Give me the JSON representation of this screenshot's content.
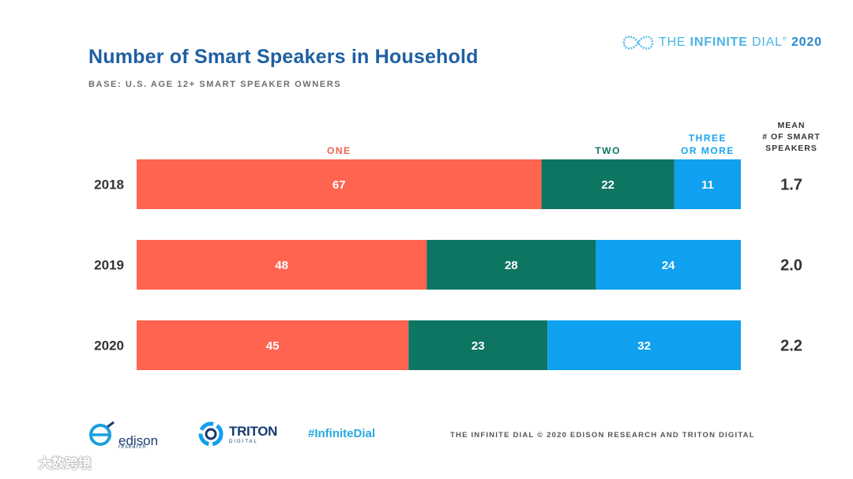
{
  "header": {
    "title": "Number of Smart Speakers in Household",
    "subtitle": "BASE: U.S. AGE 12+ SMART SPEAKER OWNERS"
  },
  "brand": {
    "prefix": "THE ",
    "bold": "INFINITE",
    "middle": " DIAL",
    "mark": "®",
    "year": "2020"
  },
  "colors": {
    "one": "#fe644f",
    "two": "#0f7563",
    "three": "#0fa0ef",
    "title": "#1f5fa3"
  },
  "chart_data": {
    "type": "bar",
    "orientation": "horizontal",
    "stacked": true,
    "title": "Number of Smart Speakers in Household",
    "subtitle": "BASE: U.S. AGE 12+ SMART SPEAKER OWNERS",
    "categories": [
      "2018",
      "2019",
      "2020"
    ],
    "xlim": [
      0,
      100
    ],
    "series": [
      {
        "name": "ONE",
        "values": [
          67,
          48,
          45
        ],
        "label_lines": [
          "ONE"
        ]
      },
      {
        "name": "TWO",
        "values": [
          22,
          28,
          23
        ],
        "label_lines": [
          "TWO"
        ]
      },
      {
        "name": "THREE OR MORE",
        "values": [
          11,
          24,
          32
        ],
        "label_lines": [
          "THREE",
          "OR MORE"
        ]
      }
    ],
    "mean": {
      "label_lines": [
        "MEAN",
        "# OF SMART",
        "SPEAKERS"
      ],
      "values": [
        "1.7",
        "2.0",
        "2.2"
      ]
    },
    "legend": "top, above segments"
  },
  "footer": {
    "edison": {
      "name": "edison",
      "sub": "research"
    },
    "triton": {
      "name": "TRITON",
      "sub": "DIGITAL"
    },
    "hashtag": "#InfiniteDial",
    "copyright": "THE INFINITE DIAL   © 2020 EDISON RESEARCH AND TRITON DIGITAL"
  },
  "watermark": {
    "text": "大数跨境",
    "icon": "chat-bubble-icon"
  }
}
